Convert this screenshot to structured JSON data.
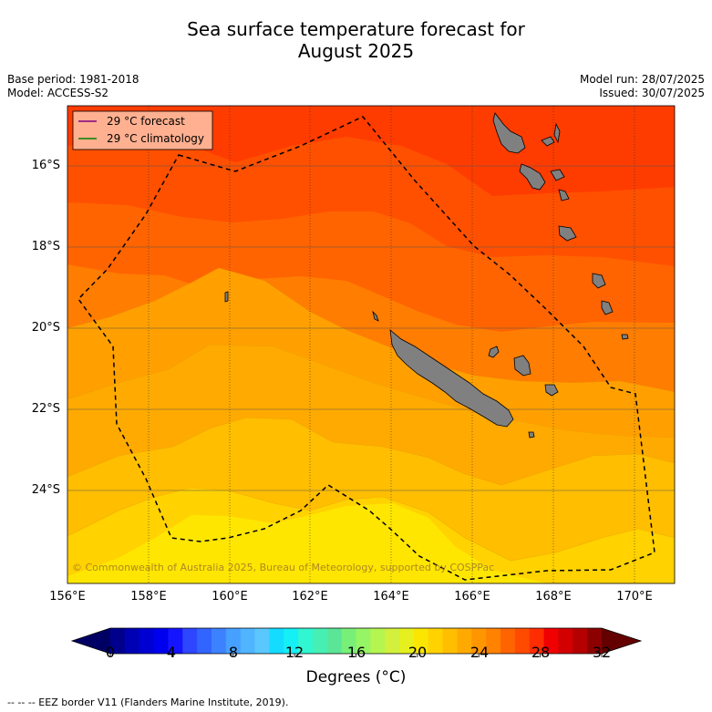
{
  "title_line1": "Sea surface temperature forecast for",
  "title_line2": "August 2025",
  "meta": {
    "base_period": "Base period: 1981-2018",
    "model": "Model: ACCESS-S2",
    "model_run": "Model run: 28/07/2025",
    "issued": "Issued: 30/07/2025"
  },
  "legend": {
    "forecast": "29 °C  forecast",
    "climatology": "29 °C  climatology",
    "forecast_color": "#800080",
    "climatology_color": "#008000"
  },
  "y_ticks": [
    "16°S",
    "18°S",
    "20°S",
    "22°S",
    "24°S"
  ],
  "x_ticks": [
    "156°E",
    "158°E",
    "160°E",
    "162°E",
    "164°E",
    "166°E",
    "168°E",
    "170°E"
  ],
  "copyright": "© Commonwealth of Australia 2025, Bureau of Meteorology, supported by COSPPac",
  "colorbar": {
    "ticks": [
      "0",
      "4",
      "8",
      "12",
      "16",
      "20",
      "24",
      "28",
      "32"
    ],
    "label": "Degrees ($^{\\circ}$C)",
    "label_display": "Degrees (°C)",
    "colors": [
      "#00008c",
      "#0000b4",
      "#0000d2",
      "#0000ee",
      "#1414ff",
      "#2d46ff",
      "#3264ff",
      "#3c82ff",
      "#46a0ff",
      "#50b4ff",
      "#5ac8ff",
      "#14dcff",
      "#14f0f5",
      "#32f5d2",
      "#46f0b4",
      "#5ae696",
      "#78f078",
      "#96f564",
      "#b4f550",
      "#d2f03c",
      "#e6f01e",
      "#fae600",
      "#ffd200",
      "#ffbe00",
      "#ffaa00",
      "#ff9600",
      "#ff8200",
      "#ff6400",
      "#ff4b00",
      "#ff2d00",
      "#f00000",
      "#d20000",
      "#b40000",
      "#8c0000"
    ],
    "under_color": "#000064",
    "over_color": "#640000"
  },
  "footer": "--  --  -- EEZ border V11 (Flanders Marine Institute, 2019)."
}
